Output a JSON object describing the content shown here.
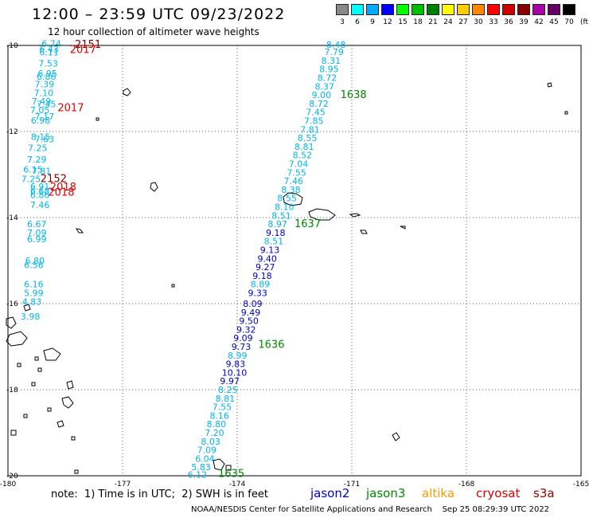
{
  "header": {
    "title": "12:00 – 23:59 UTC 09/23/2022",
    "subtitle": "12 hour collection of altimeter wave heights",
    "unit_label": "(ft)"
  },
  "legend": [
    {
      "label": "3",
      "color": "#888888"
    },
    {
      "label": "6",
      "color": "#00ffff"
    },
    {
      "label": "9",
      "color": "#00aaff"
    },
    {
      "label": "12",
      "color": "#0000ff"
    },
    {
      "label": "15",
      "color": "#00ff00"
    },
    {
      "label": "18",
      "color": "#00c000"
    },
    {
      "label": "21",
      "color": "#008000"
    },
    {
      "label": "24",
      "color": "#ffff00"
    },
    {
      "label": "27",
      "color": "#ffcc00"
    },
    {
      "label": "30",
      "color": "#ff8800"
    },
    {
      "label": "33",
      "color": "#ff0000"
    },
    {
      "label": "36",
      "color": "#cc0000"
    },
    {
      "label": "39",
      "color": "#880000"
    },
    {
      "label": "42",
      "color": "#aa00aa"
    },
    {
      "label": "45",
      "color": "#660066"
    },
    {
      "label": "70",
      "color": "#000000"
    }
  ],
  "axes": {
    "lon_labels": [
      "-180",
      "-177",
      "-174",
      "-171",
      "-168",
      "-165"
    ],
    "lat_labels": [
      "-10",
      "-12",
      "-14",
      "-16",
      "-18",
      "-20"
    ]
  },
  "colors": {
    "cyan": "#00b6ee",
    "darkblue": "#0000c8",
    "green": "#008800",
    "red": "#e00000",
    "darkred": "#800000"
  },
  "left_track": [
    {
      "v": "6.74",
      "lat": -9.95,
      "lon": -179.12
    },
    {
      "v": "6.43",
      "lat": -10.08,
      "lon": -179.18
    },
    {
      "v": "6.11",
      "lat": -10.16,
      "lon": -179.18
    },
    {
      "v": "7.53",
      "lat": -10.42,
      "lon": -179.2
    },
    {
      "v": "6.95",
      "lat": -10.65,
      "lon": -179.22
    },
    {
      "v": "6.86",
      "lat": -10.72,
      "lon": -179.25
    },
    {
      "v": "7.39",
      "lat": -10.9,
      "lon": -179.3
    },
    {
      "v": "7.10",
      "lat": -11.1,
      "lon": -179.32
    },
    {
      "v": "7.49",
      "lat": -11.3,
      "lon": -179.38
    },
    {
      "v": "7.45",
      "lat": -11.36,
      "lon": -179.25
    },
    {
      "v": "7.05",
      "lat": -11.5,
      "lon": -179.42
    },
    {
      "v": "7.17",
      "lat": -11.65,
      "lon": -179.3
    },
    {
      "v": "6.98",
      "lat": -11.74,
      "lon": -179.4
    },
    {
      "v": "8.15",
      "lat": -12.12,
      "lon": -179.4
    },
    {
      "v": "7.63",
      "lat": -12.18,
      "lon": -179.3
    },
    {
      "v": "7.25",
      "lat": -12.38,
      "lon": -179.48
    },
    {
      "v": "7.29",
      "lat": -12.65,
      "lon": -179.5
    },
    {
      "v": "6.15",
      "lat": -12.88,
      "lon": -179.6
    },
    {
      "v": "7.81",
      "lat": -12.92,
      "lon": -179.38
    },
    {
      "v": "7.25",
      "lat": -13.1,
      "lon": -179.65
    },
    {
      "v": "6.91",
      "lat": -13.28,
      "lon": -179.42
    },
    {
      "v": "6.68",
      "lat": -13.38,
      "lon": -179.42
    },
    {
      "v": "6.86",
      "lat": -13.47,
      "lon": -179.42
    },
    {
      "v": "7.46",
      "lat": -13.7,
      "lon": -179.42
    },
    {
      "v": "6.67",
      "lat": -14.15,
      "lon": -179.5
    },
    {
      "v": "7.09",
      "lat": -14.35,
      "lon": -179.5
    },
    {
      "v": "6.99",
      "lat": -14.5,
      "lon": -179.5
    },
    {
      "v": "6.80",
      "lat": -15.0,
      "lon": -179.55
    },
    {
      "v": "6.56",
      "lat": -15.1,
      "lon": -179.58
    },
    {
      "v": "6.16",
      "lat": -15.55,
      "lon": -179.58
    },
    {
      "v": "5.99",
      "lat": -15.75,
      "lon": -179.58
    },
    {
      "v": "4.83",
      "lat": -15.95,
      "lon": -179.63
    },
    {
      "v": "3.98",
      "lat": -16.3,
      "lon": -179.67
    }
  ],
  "left_labels": [
    {
      "text": "2151",
      "lat": -9.98,
      "lon": -178.25,
      "color": "darkred"
    },
    {
      "text": "2017",
      "lat": -10.1,
      "lon": -178.38,
      "color": "red"
    },
    {
      "text": "2017",
      "lat": -11.45,
      "lon": -178.7,
      "color": "red"
    },
    {
      "text": "2152",
      "lat": -13.1,
      "lon": -179.15,
      "color": "darkred"
    },
    {
      "text": "2018",
      "lat": -13.3,
      "lon": -178.9,
      "color": "red"
    },
    {
      "text": "2018",
      "lat": -13.42,
      "lon": -178.95,
      "color": "red"
    }
  ],
  "main_track": [
    {
      "v": "8.48",
      "lat": -9.98,
      "lon": -171.67,
      "c": "cyan"
    },
    {
      "v": "7.79",
      "lat": -10.15,
      "lon": -171.72,
      "c": "cyan"
    },
    {
      "v": "8.31",
      "lat": -10.35,
      "lon": -171.8,
      "c": "cyan"
    },
    {
      "v": "8.95",
      "lat": -10.55,
      "lon": -171.85,
      "c": "cyan"
    },
    {
      "v": "8.72",
      "lat": -10.75,
      "lon": -171.9,
      "c": "cyan"
    },
    {
      "v": "8.37",
      "lat": -10.95,
      "lon": -171.97,
      "c": "cyan"
    },
    {
      "v": "9.00",
      "lat": -11.15,
      "lon": -172.05,
      "c": "cyan"
    },
    {
      "v": "8.72",
      "lat": -11.35,
      "lon": -172.12,
      "c": "cyan"
    },
    {
      "v": "7.45",
      "lat": -11.55,
      "lon": -172.2,
      "c": "cyan"
    },
    {
      "v": "7.85",
      "lat": -11.75,
      "lon": -172.25,
      "c": "cyan"
    },
    {
      "v": "7.81",
      "lat": -11.95,
      "lon": -172.35,
      "c": "cyan"
    },
    {
      "v": "8.55",
      "lat": -12.15,
      "lon": -172.42,
      "c": "cyan"
    },
    {
      "v": "8.81",
      "lat": -12.35,
      "lon": -172.5,
      "c": "cyan"
    },
    {
      "v": "8.52",
      "lat": -12.55,
      "lon": -172.55,
      "c": "cyan"
    },
    {
      "v": "7.04",
      "lat": -12.75,
      "lon": -172.65,
      "c": "cyan"
    },
    {
      "v": "7.55",
      "lat": -12.95,
      "lon": -172.7,
      "c": "cyan"
    },
    {
      "v": "7.46",
      "lat": -13.15,
      "lon": -172.78,
      "c": "cyan"
    },
    {
      "v": "8.38",
      "lat": -13.35,
      "lon": -172.85,
      "c": "cyan"
    },
    {
      "v": "8.55",
      "lat": -13.55,
      "lon": -172.95,
      "c": "cyan"
    },
    {
      "v": "8.10",
      "lat": -13.75,
      "lon": -173.02,
      "c": "cyan"
    },
    {
      "v": "8.51",
      "lat": -13.95,
      "lon": -173.1,
      "c": "cyan"
    },
    {
      "v": "8.97",
      "lat": -14.15,
      "lon": -173.2,
      "c": "cyan"
    },
    {
      "v": "9.18",
      "lat": -14.35,
      "lon": -173.25,
      "c": "darkblue"
    },
    {
      "v": "8.51",
      "lat": -14.55,
      "lon": -173.3,
      "c": "cyan"
    },
    {
      "v": "9.13",
      "lat": -14.75,
      "lon": -173.4,
      "c": "darkblue"
    },
    {
      "v": "9.40",
      "lat": -14.95,
      "lon": -173.47,
      "c": "darkblue"
    },
    {
      "v": "9.27",
      "lat": -15.15,
      "lon": -173.52,
      "c": "darkblue"
    },
    {
      "v": "9.18",
      "lat": -15.35,
      "lon": -173.6,
      "c": "darkblue"
    },
    {
      "v": "8.89",
      "lat": -15.55,
      "lon": -173.65,
      "c": "cyan"
    },
    {
      "v": "9.33",
      "lat": -15.75,
      "lon": -173.72,
      "c": "darkblue"
    },
    {
      "v": "8.09",
      "lat": -16.0,
      "lon": -173.85,
      "c": "darkblue"
    },
    {
      "v": "9.49",
      "lat": -16.2,
      "lon": -173.9,
      "c": "darkblue"
    },
    {
      "v": "9.50",
      "lat": -16.4,
      "lon": -173.95,
      "c": "darkblue"
    },
    {
      "v": "9.32",
      "lat": -16.6,
      "lon": -174.02,
      "c": "darkblue"
    },
    {
      "v": "9.09",
      "lat": -16.8,
      "lon": -174.1,
      "c": "darkblue"
    },
    {
      "v": "9.73",
      "lat": -17.0,
      "lon": -174.15,
      "c": "darkblue"
    },
    {
      "v": "8.99",
      "lat": -17.2,
      "lon": -174.25,
      "c": "cyan"
    },
    {
      "v": "9.83",
      "lat": -17.4,
      "lon": -174.3,
      "c": "darkblue"
    },
    {
      "v": "10.10",
      "lat": -17.6,
      "lon": -174.4,
      "c": "darkblue"
    },
    {
      "v": "9.97",
      "lat": -17.8,
      "lon": -174.45,
      "c": "darkblue"
    },
    {
      "v": "8.25",
      "lat": -18.0,
      "lon": -174.5,
      "c": "cyan"
    },
    {
      "v": "8.81",
      "lat": -18.2,
      "lon": -174.57,
      "c": "cyan"
    },
    {
      "v": "7.55",
      "lat": -18.4,
      "lon": -174.65,
      "c": "cyan"
    },
    {
      "v": "8.16",
      "lat": -18.6,
      "lon": -174.72,
      "c": "cyan"
    },
    {
      "v": "8.80",
      "lat": -18.8,
      "lon": -174.8,
      "c": "cyan"
    },
    {
      "v": "7.20",
      "lat": -19.0,
      "lon": -174.85,
      "c": "cyan"
    },
    {
      "v": "8.03",
      "lat": -19.2,
      "lon": -174.95,
      "c": "cyan"
    },
    {
      "v": "7.09",
      "lat": -19.4,
      "lon": -175.05,
      "c": "cyan"
    },
    {
      "v": "6.04",
      "lat": -19.6,
      "lon": -175.1,
      "c": "cyan"
    },
    {
      "v": "5.83",
      "lat": -19.8,
      "lon": -175.2,
      "c": "cyan"
    },
    {
      "v": "6.12",
      "lat": -19.97,
      "lon": -175.3,
      "c": "cyan"
    }
  ],
  "time_labels": [
    {
      "text": "1638",
      "lat": -11.15,
      "lon": -171.3,
      "color": "green"
    },
    {
      "text": "1637",
      "lat": -14.15,
      "lon": -172.5,
      "color": "green"
    },
    {
      "text": "1636",
      "lat": -16.95,
      "lon": -173.45,
      "color": "green"
    },
    {
      "text": "1635",
      "lat": -19.95,
      "lon": -174.5,
      "color": "green"
    }
  ],
  "footer": {
    "note": "note:  1) Time is in UTC;  2) SWH is in feet",
    "satellites": [
      {
        "name": "jason2",
        "color": "#0000cc"
      },
      {
        "name": "jason3",
        "color": "#008800"
      },
      {
        "name": "altika",
        "color": "#ff9900"
      },
      {
        "name": "cryosat",
        "color": "#e00000"
      },
      {
        "name": "s3a",
        "color": "#990000"
      }
    ],
    "credit": "NOAA/NESDIS Center for Satellite Applications and Research    Sep 25 08:29:39 UTC 2022"
  }
}
